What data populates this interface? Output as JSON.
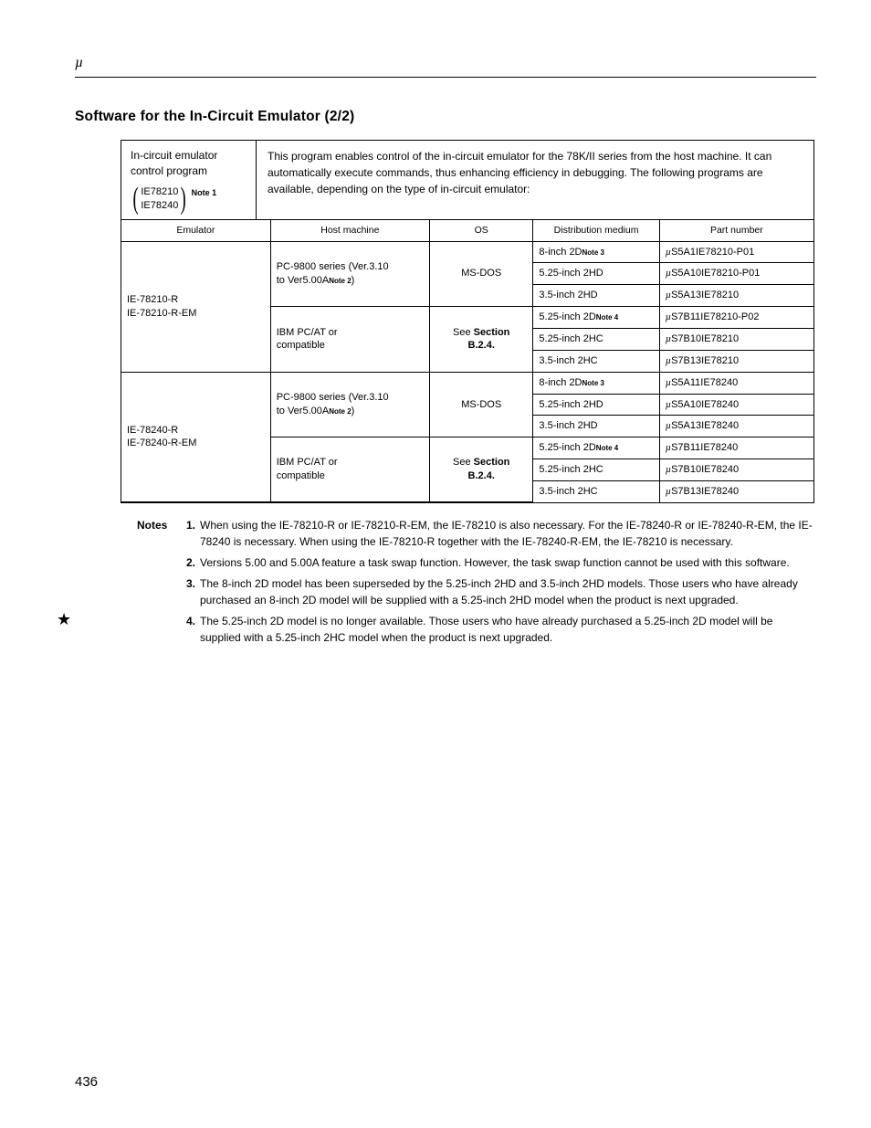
{
  "header": {
    "symbol": "µ"
  },
  "title": "Software for the In-Circuit Emulator (2/2)",
  "left_box": {
    "line1": "In-circuit emulator",
    "line2": "control program",
    "paren1": "IE78210",
    "paren2": "IE78240",
    "note_ref": "Note 1"
  },
  "description": "This program enables control of the in-circuit emulator for the 78K/II series from the host machine.  It can automatically execute commands, thus enhancing efficiency in debugging.  The following programs are available, depending on the type of in-circuit emulator:",
  "table": {
    "headers": {
      "emulator": "Emulator",
      "host": "Host machine",
      "os": "OS",
      "dist": "Distribution medium",
      "part": "Part number"
    },
    "groups": [
      {
        "emulator": [
          "IE-78210-R",
          "IE-78210-R-EM"
        ],
        "host_groups": [
          {
            "host": {
              "l1": "PC-9800 series (Ver.3.10",
              "l2": "to Ver5.00A",
              "sup": "Note 2",
              "l3": ")"
            },
            "os": "MS-DOS",
            "rows": [
              {
                "dist": "8-inch 2D",
                "dsup": "Note 3",
                "part": "S5A1IE78210-P01"
              },
              {
                "dist": "5.25-inch 2HD",
                "dsup": "",
                "part": "S5A10IE78210-P01"
              },
              {
                "dist": "3.5-inch 2HD",
                "dsup": "",
                "part": "S5A13IE78210"
              }
            ]
          },
          {
            "host": {
              "l1": "IBM PC/AT or",
              "l2": "compatible",
              "sup": "",
              "l3": ""
            },
            "os_html": [
              "See ",
              "Section",
              "B.2.4."
            ],
            "rows": [
              {
                "dist": "5.25-inch 2D",
                "dsup": "Note 4",
                "part": "S7B11IE78210-P02"
              },
              {
                "dist": "5.25-inch 2HC",
                "dsup": "",
                "part": "S7B10IE78210"
              },
              {
                "dist": "3.5-inch 2HC",
                "dsup": "",
                "part": "S7B13IE78210"
              }
            ]
          }
        ]
      },
      {
        "emulator": [
          "IE-78240-R",
          "IE-78240-R-EM"
        ],
        "host_groups": [
          {
            "host": {
              "l1": "PC-9800 series (Ver.3.10",
              "l2": "to Ver5.00A",
              "sup": "Note 2",
              "l3": ")"
            },
            "os": "MS-DOS",
            "rows": [
              {
                "dist": "8-inch 2D",
                "dsup": "Note 3",
                "part": "S5A11IE78240"
              },
              {
                "dist": "5.25-inch 2HD",
                "dsup": "",
                "part": "S5A10IE78240"
              },
              {
                "dist": "3.5-inch 2HD",
                "dsup": "",
                "part": "S5A13IE78240"
              }
            ]
          },
          {
            "host": {
              "l1": "IBM PC/AT or",
              "l2": "compatible",
              "sup": "",
              "l3": ""
            },
            "os_html": [
              "See ",
              "Section",
              "B.2.4."
            ],
            "rows": [
              {
                "dist": "5.25-inch 2D",
                "dsup": "Note 4",
                "part": "S7B11IE78240"
              },
              {
                "dist": "5.25-inch 2HC",
                "dsup": "",
                "part": "S7B10IE78240"
              },
              {
                "dist": "3.5-inch 2HC",
                "dsup": "",
                "part": "S7B13IE78240"
              }
            ]
          }
        ]
      }
    ]
  },
  "notes": {
    "label": "Notes",
    "items": [
      {
        "n": "1.",
        "t": "When using the IE-78210-R or IE-78210-R-EM, the IE-78210 is also necessary.  For the IE-78240-R or IE-78240-R-EM, the IE-78240 is necessary.  When using the IE-78210-R together with the IE-78240-R-EM, the IE-78210 is necessary."
      },
      {
        "n": "2.",
        "t": "Versions 5.00 and 5.00A feature a task swap function.  However, the task swap function cannot be used with this software."
      },
      {
        "n": "3.",
        "t": "The 8-inch 2D model has been superseded by the 5.25-inch 2HD and 3.5-inch 2HD models.  Those users who have already purchased an 8-inch 2D model will be supplied with a 5.25-inch 2HD model when the product is next upgraded."
      },
      {
        "n": "4.",
        "t": "The 5.25-inch 2D model is no longer available.  Those users who have already purchased a 5.25-inch 2D model will be supplied with  a 5.25-inch 2HC model when the product is next upgraded."
      }
    ]
  },
  "star": "★",
  "page_number": "436"
}
